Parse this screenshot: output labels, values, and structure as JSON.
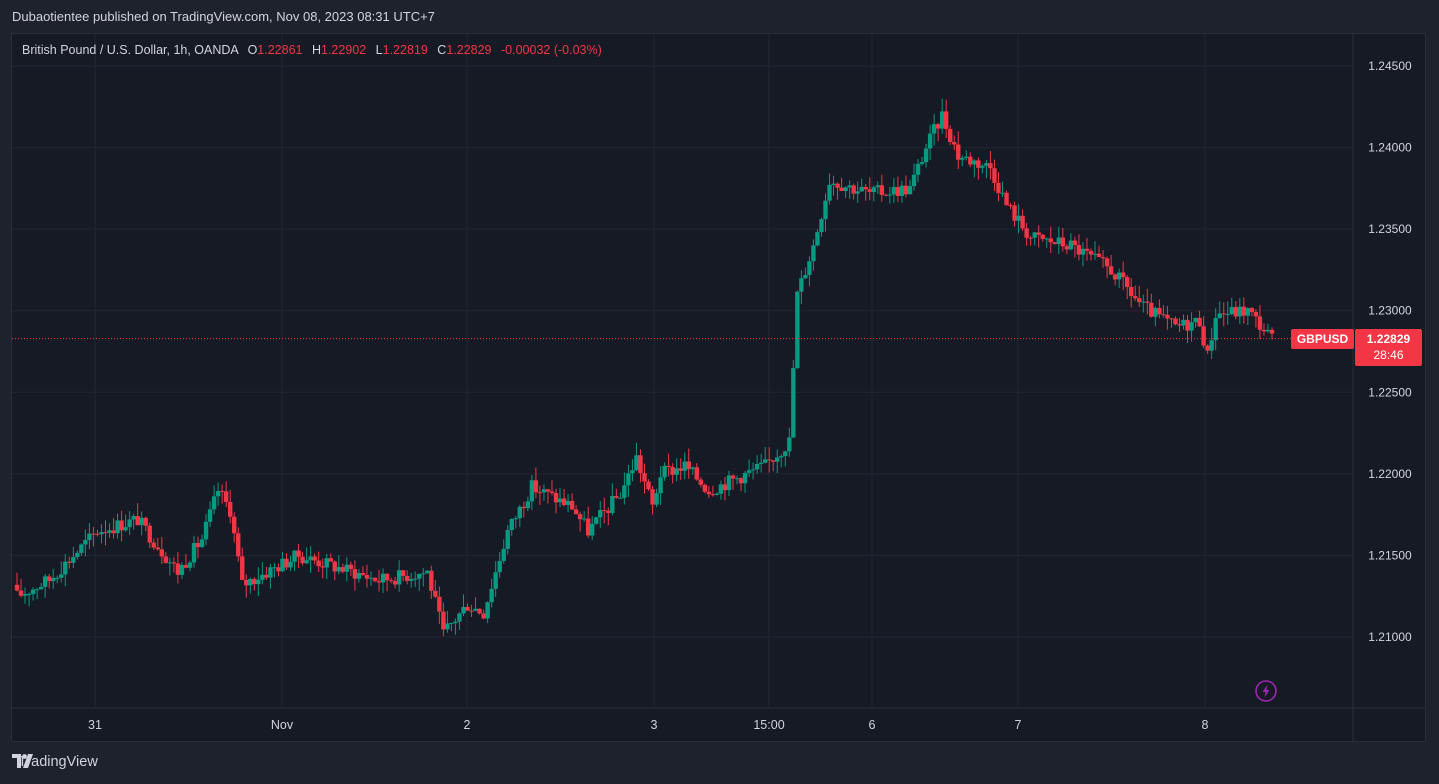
{
  "header": {
    "published_text": "Dubaotientee published on TradingView.com, Nov 08, 2023 08:31 UTC+7"
  },
  "legend": {
    "symbol_desc": "British Pound / U.S. Dollar, 1h, OANDA",
    "o_label": "O",
    "o_value": "1.22861",
    "h_label": "H",
    "h_value": "1.22902",
    "l_label": "L",
    "l_value": "1.22819",
    "c_label": "C",
    "c_value": "1.22829",
    "change": "-0.00032 (-0.03%)"
  },
  "price_tag": {
    "symbol": "GBPUSD",
    "price": "1.22829",
    "countdown": "28:46"
  },
  "footer": {
    "brand": "TradingView"
  },
  "colors": {
    "up": "#089981",
    "down": "#f23645",
    "background": "#161a25",
    "grid": "#232632",
    "text": "#d1d4dc",
    "bolt": "#9c27b0"
  },
  "icons": {
    "footer_logo": "tradingview-logo-icon",
    "alert": "lightning-icon"
  },
  "chart_data": {
    "type": "candlestick",
    "symbol": "GBPUSD",
    "interval": "1h",
    "y_axis_ticks": [
      "1.24500",
      "1.24000",
      "1.23500",
      "1.23000",
      "1.22500",
      "1.22000",
      "1.21500",
      "1.21000"
    ],
    "x_axis_ticks": [
      "31",
      "Nov",
      "2",
      "3",
      "15:00",
      "6",
      "7",
      "8"
    ],
    "ylim": [
      1.2055,
      1.2465
    ],
    "last_price": 1.22829,
    "path_approx": [
      [
        0,
        1.2125
      ],
      [
        8,
        1.2135
      ],
      [
        20,
        1.2165
      ],
      [
        30,
        1.2172
      ],
      [
        40,
        1.214
      ],
      [
        46,
        1.216
      ],
      [
        50,
        1.219
      ],
      [
        53,
        1.2178
      ],
      [
        56,
        1.2132
      ],
      [
        70,
        1.215
      ],
      [
        90,
        1.2135
      ],
      [
        102,
        1.214
      ],
      [
        106,
        1.2102
      ],
      [
        112,
        1.212
      ],
      [
        116,
        1.2115
      ],
      [
        122,
        1.2165
      ],
      [
        128,
        1.2192
      ],
      [
        138,
        1.218
      ],
      [
        142,
        1.2165
      ],
      [
        150,
        1.2188
      ],
      [
        154,
        1.221
      ],
      [
        158,
        1.218
      ],
      [
        160,
        1.22
      ],
      [
        166,
        1.2205
      ],
      [
        172,
        1.219
      ],
      [
        186,
        1.2205
      ],
      [
        192,
        1.222
      ],
      [
        194,
        1.231
      ],
      [
        198,
        1.234
      ],
      [
        202,
        1.238
      ],
      [
        212,
        1.2372
      ],
      [
        222,
        1.2375
      ],
      [
        226,
        1.24
      ],
      [
        230,
        1.242
      ],
      [
        234,
        1.2395
      ],
      [
        242,
        1.2388
      ],
      [
        246,
        1.2365
      ],
      [
        252,
        1.2345
      ],
      [
        262,
        1.234
      ],
      [
        272,
        1.2325
      ],
      [
        280,
        1.2302
      ],
      [
        288,
        1.229
      ],
      [
        294,
        1.2294
      ],
      [
        296,
        1.2272
      ],
      [
        298,
        1.2298
      ],
      [
        306,
        1.23
      ],
      [
        312,
        1.22829
      ]
    ]
  }
}
